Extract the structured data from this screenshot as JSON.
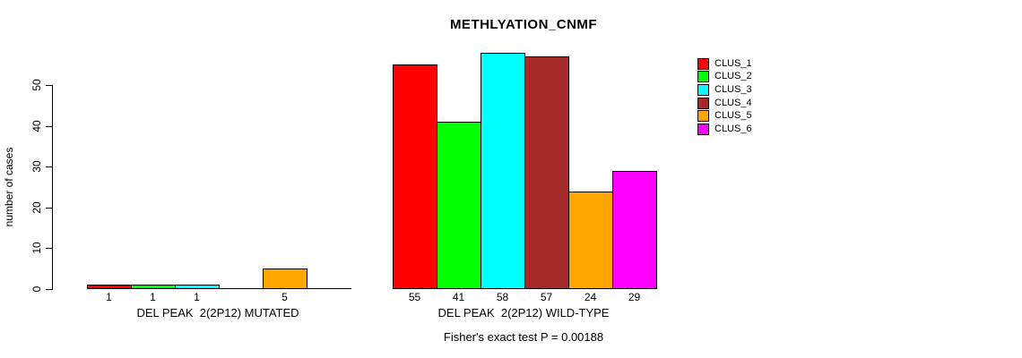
{
  "title": "METHLYATION_CNMF",
  "footer": "Fisher's exact test P = 0.00188",
  "chart_data": {
    "type": "bar",
    "title": "METHLYATION_CNMF",
    "xlabel": "",
    "ylabel": "number of cases",
    "ylim": [
      0,
      58
    ],
    "yticks": [
      0,
      10,
      20,
      30,
      40,
      50
    ],
    "grid": false,
    "legend_position": "right",
    "caption": "Fisher's exact test P = 0.00188",
    "clusters": [
      {
        "name": "CLUS_1",
        "color": "#FF0000"
      },
      {
        "name": "CLUS_2",
        "color": "#00FF00"
      },
      {
        "name": "CLUS_3",
        "color": "#00FFFF"
      },
      {
        "name": "CLUS_4",
        "color": "#A52A2A"
      },
      {
        "name": "CLUS_5",
        "color": "#FFA500"
      },
      {
        "name": "CLUS_6",
        "color": "#FF00FF"
      }
    ],
    "groups": [
      {
        "label": "DEL PEAK  2(2P12) MUTATED",
        "values": [
          1,
          1,
          1,
          0,
          5,
          0
        ],
        "bar_labels": [
          "1",
          "1",
          "1",
          "",
          "5",
          ""
        ]
      },
      {
        "label": "DEL PEAK  2(2P12) WILD-TYPE",
        "values": [
          55,
          41,
          58,
          57,
          24,
          29
        ],
        "bar_labels": [
          "55",
          "41",
          "58",
          "57",
          "24",
          "29"
        ]
      }
    ]
  }
}
